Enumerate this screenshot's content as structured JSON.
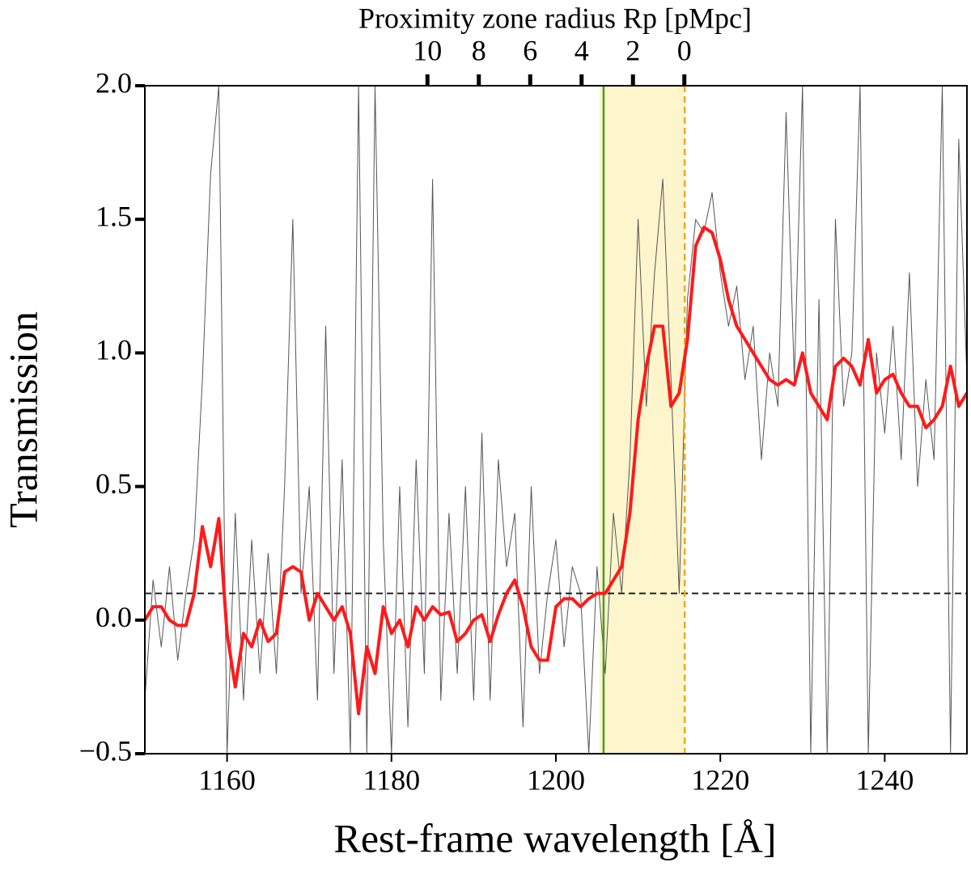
{
  "chart_data": {
    "type": "line",
    "xlabel": "Rest-frame wavelength [Å]",
    "ylabel": "Transmission",
    "x2label": "Proximity zone radius Rp [pMpc]",
    "xlim": [
      1150,
      1250
    ],
    "ylim": [
      -0.5,
      2.0
    ],
    "xticks": [
      1160,
      1180,
      1200,
      1220,
      1240
    ],
    "yticks": [
      {
        "value": -0.5,
        "label": "−0.5"
      },
      {
        "value": 0,
        "label": "0.0"
      },
      0.5,
      {
        "value": 1,
        "label": "1.0"
      },
      1.5,
      {
        "value": 2,
        "label": "2.0"
      }
    ],
    "x2lim": [
      21.0,
      -11.0
    ],
    "x2ticks": [
      10,
      8,
      6,
      4,
      2,
      0
    ],
    "shaded_region": {
      "x": [
        1205.3,
        1215.67
      ],
      "color": "#fdf5cc"
    },
    "vlines": [
      {
        "x": 1205.8,
        "color": "#4a9a2a",
        "dash": false
      },
      {
        "x": 1215.67,
        "color": "#f5a623",
        "dash": true
      }
    ],
    "hlines": [
      {
        "y": 0.1,
        "color": "#222222",
        "dash": true
      }
    ],
    "series": [
      {
        "color": "#555555",
        "width": 1,
        "x": [
          1150,
          1151,
          1152,
          1153,
          1154,
          1155,
          1156,
          1157,
          1158,
          1159,
          1160,
          1161,
          1162,
          1163,
          1164,
          1165,
          1166,
          1167,
          1168,
          1169,
          1170,
          1171,
          1172,
          1173,
          1174,
          1175,
          1176,
          1177,
          1178,
          1179,
          1180,
          1181,
          1182,
          1183,
          1184,
          1185,
          1186,
          1187,
          1188,
          1189,
          1190,
          1191,
          1192,
          1193,
          1194,
          1195,
          1196,
          1197,
          1198,
          1199,
          1200,
          1201,
          1202,
          1203,
          1204,
          1205,
          1206,
          1207,
          1208,
          1209,
          1210,
          1211,
          1212,
          1213,
          1214,
          1215,
          1216,
          1217,
          1218,
          1219,
          1220,
          1221,
          1222,
          1223,
          1224,
          1225,
          1226,
          1227,
          1228,
          1229,
          1230,
          1231,
          1232,
          1233,
          1234,
          1235,
          1236,
          1237,
          1238,
          1239,
          1240,
          1241,
          1242,
          1243,
          1244,
          1245,
          1246,
          1247,
          1248,
          1249,
          1250
        ],
        "values": [
          -0.3,
          0.15,
          -0.1,
          0.2,
          -0.15,
          0.1,
          0.3,
          0.9,
          1.67,
          2.0,
          -0.5,
          0.4,
          -0.3,
          0.3,
          -0.2,
          0.25,
          -0.2,
          0.5,
          1.5,
          0.1,
          0.5,
          -0.3,
          1.1,
          -0.2,
          0.6,
          -0.5,
          2.0,
          -0.5,
          2.0,
          0.3,
          -0.5,
          0.5,
          -0.4,
          0.6,
          -0.2,
          1.65,
          -0.3,
          0.4,
          -0.2,
          0.5,
          -0.3,
          0.7,
          -0.3,
          0.6,
          0.2,
          0.4,
          -0.4,
          0.5,
          -0.2,
          0.1,
          0.3,
          -0.1,
          0.2,
          0.1,
          -0.5,
          0.2,
          -0.2,
          0.4,
          0.1,
          0.6,
          1.5,
          0.8,
          1.3,
          1.65,
          0.9,
          0.1,
          1.2,
          1.5,
          1.45,
          1.6,
          1.3,
          1.1,
          1.25,
          0.9,
          1.1,
          0.6,
          1.0,
          0.8,
          1.9,
          0.9,
          2.0,
          -0.5,
          1.2,
          -0.5,
          1.5,
          0.8,
          1.0,
          2.0,
          -0.5,
          1.0,
          0.7,
          1.1,
          0.6,
          1.3,
          0.5,
          0.9,
          0.6,
          2.0,
          -0.5,
          1.8,
          0.9
        ]
      },
      {
        "color": "#ff1a1a",
        "width": 4,
        "x": [
          1150,
          1151,
          1152,
          1153,
          1154,
          1155,
          1156,
          1157,
          1158,
          1159,
          1160,
          1161,
          1162,
          1163,
          1164,
          1165,
          1166,
          1167,
          1168,
          1169,
          1170,
          1171,
          1172,
          1173,
          1174,
          1175,
          1176,
          1177,
          1178,
          1179,
          1180,
          1181,
          1182,
          1183,
          1184,
          1185,
          1186,
          1187,
          1188,
          1189,
          1190,
          1191,
          1192,
          1193,
          1194,
          1195,
          1196,
          1197,
          1198,
          1199,
          1200,
          1201,
          1202,
          1203,
          1204,
          1205,
          1206,
          1207,
          1208,
          1209,
          1210,
          1211,
          1212,
          1213,
          1214,
          1215,
          1216,
          1217,
          1218,
          1219,
          1220,
          1221,
          1222,
          1223,
          1224,
          1225,
          1226,
          1227,
          1228,
          1229,
          1230,
          1231,
          1232,
          1233,
          1234,
          1235,
          1236,
          1237,
          1238,
          1239,
          1240,
          1241,
          1242,
          1243,
          1244,
          1245,
          1246,
          1247,
          1248,
          1249,
          1250
        ],
        "values": [
          0.0,
          0.05,
          0.05,
          0.0,
          -0.02,
          -0.02,
          0.1,
          0.35,
          0.2,
          0.38,
          -0.05,
          -0.25,
          -0.05,
          -0.1,
          0.0,
          -0.08,
          -0.05,
          0.18,
          0.2,
          0.18,
          0.0,
          0.1,
          0.05,
          0.0,
          0.05,
          -0.05,
          -0.35,
          -0.1,
          -0.2,
          0.05,
          -0.05,
          0.0,
          -0.1,
          0.05,
          0.0,
          0.05,
          0.02,
          0.03,
          -0.08,
          -0.05,
          0.0,
          0.02,
          -0.08,
          0.02,
          0.1,
          0.15,
          0.05,
          -0.1,
          -0.15,
          -0.15,
          0.05,
          0.08,
          0.08,
          0.05,
          0.08,
          0.1,
          0.1,
          0.15,
          0.2,
          0.4,
          0.75,
          0.95,
          1.1,
          1.1,
          0.8,
          0.85,
          1.05,
          1.4,
          1.47,
          1.45,
          1.35,
          1.2,
          1.1,
          1.05,
          1.0,
          0.95,
          0.9,
          0.88,
          0.9,
          0.88,
          1.0,
          0.85,
          0.8,
          0.75,
          0.95,
          0.98,
          0.95,
          0.88,
          1.05,
          0.85,
          0.9,
          0.92,
          0.85,
          0.8,
          0.8,
          0.72,
          0.75,
          0.8,
          0.95,
          0.8,
          0.85
        ]
      }
    ]
  }
}
